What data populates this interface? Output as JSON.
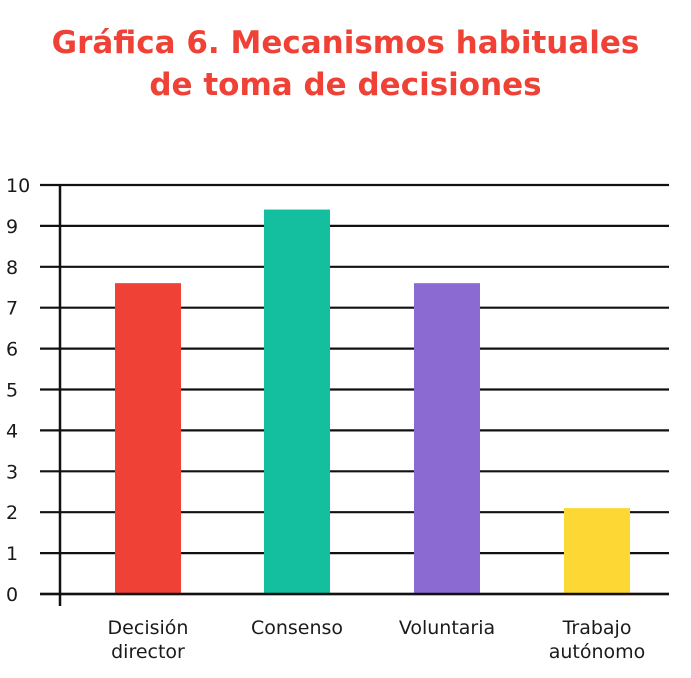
{
  "chart_data": {
    "type": "bar",
    "title_lines": [
      "Gráfica 6. Mecanismos habituales",
      "de toma de decisiones"
    ],
    "categories": [
      [
        "Decisión",
        "director"
      ],
      [
        "Consenso"
      ],
      [
        "Voluntaria"
      ],
      [
        "Trabajo",
        "autónomo"
      ]
    ],
    "values": [
      7.6,
      9.4,
      7.6,
      2.1
    ],
    "colors": [
      "#ef4135",
      "#13bf9f",
      "#8b6bd1",
      "#fdd835"
    ],
    "yticks": [
      "0",
      "1",
      "2",
      "3",
      "4",
      "5",
      "6",
      "7",
      "8",
      "9",
      "10"
    ],
    "ylim": [
      0,
      10
    ],
    "grid": true,
    "legend": "none"
  }
}
